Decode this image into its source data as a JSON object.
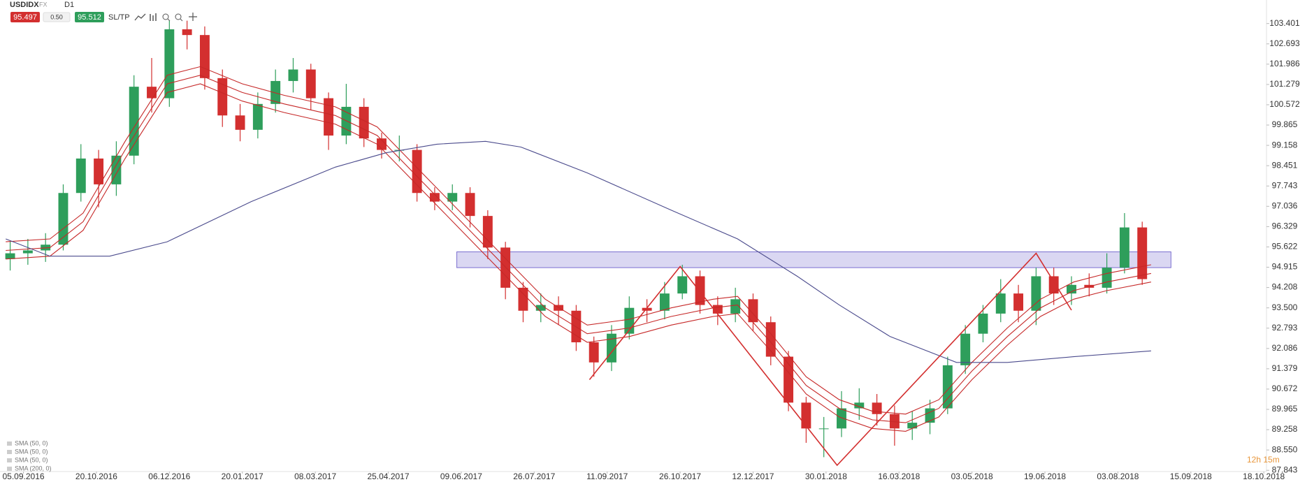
{
  "toolbar": {
    "symbol": "USDIDX",
    "market": "FX",
    "timeframe": "D1",
    "sell_price": "95.497",
    "lot": "0.50",
    "buy_price": "95.512",
    "sltp": "SL/TP"
  },
  "timer": "12h 15m",
  "chart_data": {
    "type": "candlestick",
    "title": "USDIDX",
    "up_color": "#2e9e5b",
    "down_color": "#d32f2f",
    "x": [
      -6,
      2,
      10,
      18,
      26,
      34,
      42,
      50,
      58,
      66,
      74,
      82,
      90,
      98,
      106,
      114,
      122,
      130,
      138,
      146,
      154,
      162,
      170,
      178,
      186,
      194,
      202,
      210,
      218,
      226,
      234,
      242,
      250,
      258,
      266,
      274,
      282,
      290,
      298,
      306,
      314,
      322,
      330,
      338,
      346,
      354,
      362,
      370,
      378,
      386,
      394,
      402,
      410,
      418,
      426,
      434,
      442,
      450,
      458,
      466,
      474,
      482,
      490,
      498,
      506
    ],
    "candles": [
      [
        95.2,
        95.8,
        94.8,
        95.4
      ],
      [
        95.4,
        95.9,
        95.0,
        95.5
      ],
      [
        95.5,
        96.1,
        95.1,
        95.7
      ],
      [
        95.7,
        97.8,
        95.5,
        97.5
      ],
      [
        97.5,
        99.2,
        97.2,
        98.7
      ],
      [
        98.7,
        99.0,
        97.0,
        97.8
      ],
      [
        97.8,
        99.3,
        97.4,
        98.8
      ],
      [
        98.8,
        101.6,
        98.5,
        101.2
      ],
      [
        101.2,
        102.2,
        100.3,
        100.8
      ],
      [
        100.8,
        103.5,
        100.5,
        103.2
      ],
      [
        103.2,
        103.5,
        102.5,
        103.0
      ],
      [
        103.0,
        103.3,
        101.1,
        101.5
      ],
      [
        101.5,
        101.8,
        99.8,
        100.2
      ],
      [
        100.2,
        100.6,
        99.3,
        99.7
      ],
      [
        99.7,
        101.0,
        99.4,
        100.6
      ],
      [
        100.6,
        101.8,
        100.3,
        101.4
      ],
      [
        101.4,
        102.2,
        101.0,
        101.8
      ],
      [
        101.8,
        102.0,
        100.4,
        100.8
      ],
      [
        100.8,
        101.0,
        99.0,
        99.5
      ],
      [
        99.5,
        101.3,
        99.2,
        100.5
      ],
      [
        100.5,
        100.8,
        99.1,
        99.4
      ],
      [
        99.4,
        99.6,
        98.7,
        99.0
      ],
      [
        99.0,
        99.5,
        98.6,
        99.0
      ],
      [
        99.0,
        99.2,
        97.2,
        97.5
      ],
      [
        97.5,
        97.7,
        96.9,
        97.2
      ],
      [
        97.2,
        97.8,
        96.9,
        97.5
      ],
      [
        97.5,
        97.7,
        96.3,
        96.7
      ],
      [
        96.7,
        96.9,
        95.2,
        95.6
      ],
      [
        95.6,
        95.8,
        93.8,
        94.2
      ],
      [
        94.2,
        94.4,
        93.0,
        93.4
      ],
      [
        93.4,
        94.0,
        93.0,
        93.6
      ],
      [
        93.6,
        93.9,
        92.9,
        93.4
      ],
      [
        93.4,
        93.6,
        92.0,
        92.3
      ],
      [
        92.3,
        92.5,
        91.1,
        91.6
      ],
      [
        91.6,
        92.9,
        91.3,
        92.6
      ],
      [
        92.6,
        93.9,
        92.4,
        93.5
      ],
      [
        93.5,
        93.8,
        93.0,
        93.4
      ],
      [
        93.4,
        94.4,
        93.1,
        94.0
      ],
      [
        94.0,
        95.0,
        93.8,
        94.6
      ],
      [
        94.6,
        94.8,
        93.3,
        93.6
      ],
      [
        93.6,
        93.9,
        92.9,
        93.3
      ],
      [
        93.3,
        94.2,
        93.0,
        93.8
      ],
      [
        93.8,
        94.0,
        92.7,
        93.0
      ],
      [
        93.0,
        93.2,
        91.5,
        91.8
      ],
      [
        91.8,
        92.0,
        89.9,
        90.2
      ],
      [
        90.2,
        90.4,
        88.8,
        89.3
      ],
      [
        89.3,
        89.7,
        88.3,
        89.3
      ],
      [
        89.3,
        90.6,
        89.0,
        90.0
      ],
      [
        90.0,
        90.7,
        89.6,
        90.2
      ],
      [
        90.2,
        90.5,
        89.4,
        89.8
      ],
      [
        89.8,
        90.1,
        88.7,
        89.3
      ],
      [
        89.3,
        89.9,
        88.9,
        89.5
      ],
      [
        89.5,
        90.3,
        89.1,
        90.0
      ],
      [
        90.0,
        91.8,
        89.8,
        91.5
      ],
      [
        91.5,
        92.9,
        91.2,
        92.6
      ],
      [
        92.6,
        93.6,
        92.3,
        93.3
      ],
      [
        93.3,
        94.5,
        93.0,
        94.0
      ],
      [
        94.0,
        94.3,
        93.0,
        93.4
      ],
      [
        93.4,
        94.9,
        92.9,
        94.6
      ],
      [
        94.6,
        94.9,
        93.6,
        94.0
      ],
      [
        94.0,
        94.6,
        93.6,
        94.3
      ],
      [
        94.3,
        94.7,
        93.9,
        94.2
      ],
      [
        94.2,
        95.4,
        94.0,
        94.9
      ],
      [
        94.9,
        96.8,
        94.7,
        96.3
      ],
      [
        96.3,
        96.5,
        94.3,
        94.5
      ]
    ],
    "series": [
      {
        "name": "SMA (50, 0)",
        "color": "#c62828",
        "x": [
          -8,
          12,
          27,
          46,
          65,
          80,
          99,
          118,
          141,
          160,
          179,
          198,
          217,
          236,
          255,
          274,
          293,
          312,
          323,
          338,
          354,
          369,
          384,
          399,
          414,
          429,
          445,
          460,
          475,
          490,
          510
        ],
        "values": [
          95.8,
          95.9,
          96.8,
          99.3,
          101.6,
          101.9,
          101.3,
          100.9,
          100.5,
          99.8,
          98.3,
          96.8,
          95.3,
          93.8,
          92.9,
          93.1,
          93.5,
          93.8,
          93.9,
          92.6,
          91.1,
          90.3,
          89.9,
          89.8,
          90.3,
          91.6,
          92.8,
          93.8,
          94.4,
          94.7,
          95.0
        ]
      },
      {
        "name": "SMA (50, 0)",
        "color": "#c62828",
        "x": [
          -8,
          12,
          27,
          46,
          65,
          80,
          99,
          118,
          141,
          160,
          179,
          198,
          217,
          236,
          255,
          274,
          293,
          312,
          323,
          338,
          354,
          369,
          384,
          399,
          414,
          429,
          445,
          460,
          475,
          490,
          510
        ],
        "values": [
          95.5,
          95.6,
          96.5,
          99.0,
          101.3,
          101.6,
          101.0,
          100.6,
          100.2,
          99.5,
          98.0,
          96.5,
          95.0,
          93.5,
          92.6,
          92.8,
          93.2,
          93.5,
          93.6,
          92.3,
          90.8,
          90.0,
          89.6,
          89.5,
          90.0,
          91.3,
          92.5,
          93.5,
          94.1,
          94.4,
          94.7
        ]
      },
      {
        "name": "SMA (50, 0)",
        "color": "#c62828",
        "x": [
          -8,
          12,
          27,
          46,
          65,
          80,
          99,
          118,
          141,
          160,
          179,
          198,
          217,
          236,
          255,
          274,
          293,
          312,
          323,
          338,
          354,
          369,
          384,
          399,
          414,
          429,
          445,
          460,
          475,
          490,
          510
        ],
        "values": [
          95.2,
          95.3,
          96.2,
          98.7,
          101.0,
          101.3,
          100.7,
          100.3,
          99.9,
          99.2,
          97.7,
          96.2,
          94.7,
          93.2,
          92.3,
          92.5,
          92.9,
          93.2,
          93.3,
          92.0,
          90.5,
          89.7,
          89.3,
          89.2,
          89.7,
          91.0,
          92.2,
          93.2,
          93.8,
          94.1,
          94.4
        ]
      },
      {
        "name": "SMA (200, 0)",
        "color": "#4a4a8c",
        "x": [
          -8,
          12,
          39,
          65,
          103,
          141,
          164,
          187,
          209,
          225,
          255,
          293,
          323,
          350,
          369,
          392,
          422,
          445,
          475,
          510
        ],
        "values": [
          95.9,
          95.3,
          95.3,
          95.8,
          97.2,
          98.4,
          98.9,
          99.2,
          99.3,
          99.1,
          98.2,
          96.9,
          95.9,
          94.6,
          93.6,
          92.5,
          91.6,
          91.6,
          91.8,
          92.0
        ]
      }
    ],
    "zone": {
      "color": "#7b6fd0",
      "x": [
        196,
        519
      ],
      "values": [
        94.9,
        95.45
      ]
    },
    "zigzag": {
      "color": "#d32f2f",
      "x": [
        256,
        297,
        368,
        458,
        474
      ],
      "values": [
        91.0,
        94.94,
        88.02,
        95.4,
        93.42
      ]
    },
    "legend": "bottom-left",
    "xlim": [
      -10.6,
      562.2
    ],
    "xticks": [
      {
        "value": 0,
        "label": "05.09.2016"
      },
      {
        "value": 33,
        "label": "20.10.2016"
      },
      {
        "value": 66,
        "label": "06.12.2016"
      },
      {
        "value": 99,
        "label": "20.01.2017"
      },
      {
        "value": 132,
        "label": "08.03.2017"
      },
      {
        "value": 165,
        "label": "25.04.2017"
      },
      {
        "value": 198,
        "label": "09.06.2017"
      },
      {
        "value": 231,
        "label": "26.07.2017"
      },
      {
        "value": 264,
        "label": "11.09.2017"
      },
      {
        "value": 297,
        "label": "26.10.2017"
      },
      {
        "value": 330,
        "label": "12.12.2017"
      },
      {
        "value": 363,
        "label": "30.01.2018"
      },
      {
        "value": 396,
        "label": "16.03.2018"
      },
      {
        "value": 429,
        "label": "03.05.2018"
      },
      {
        "value": 462,
        "label": "19.06.2018"
      },
      {
        "value": 495,
        "label": "03.08.2018"
      },
      {
        "value": 528,
        "label": "15.09.2018"
      },
      {
        "value": 561,
        "label": "18.10.2018"
      }
    ],
    "ylim": [
      87.8,
      104.22
    ],
    "yticks": [
      103.401,
      102.693,
      101.986,
      101.279,
      100.572,
      99.865,
      99.158,
      98.451,
      97.743,
      97.036,
      96.329,
      95.622,
      94.915,
      94.208,
      {
        "value": 93.5,
        "label": "93.500"
      },
      92.793,
      92.086,
      91.379,
      90.672,
      89.965,
      89.258,
      {
        "value": 88.55,
        "label": "88.550"
      },
      87.843
    ],
    "grid": false
  }
}
